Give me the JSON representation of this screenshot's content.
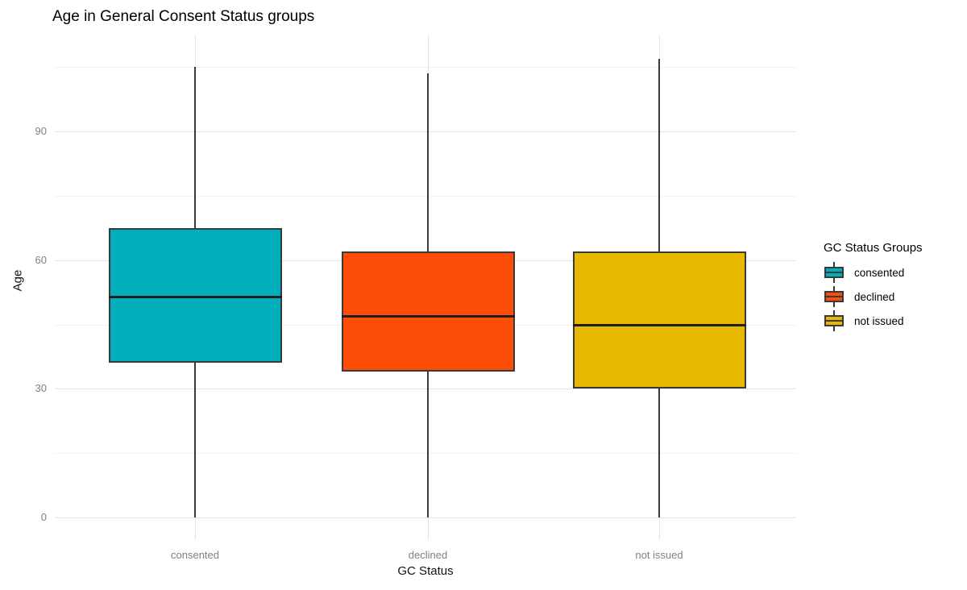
{
  "title": "Age in General Consent Status groups",
  "chart_data": {
    "type": "boxplot",
    "title": "Age in General Consent Status groups",
    "xlabel": "GC Status",
    "ylabel": "Age",
    "categories": [
      "consented",
      "declined",
      "not issued"
    ],
    "y_major_ticks": [
      0,
      30,
      60,
      90
    ],
    "y_tick_labels": [
      "0",
      "30",
      "60",
      "90"
    ],
    "y_minor_gridlines": [
      15,
      45,
      75,
      105
    ],
    "ylim": [
      -5,
      112
    ],
    "grid": true,
    "legend_title": "GC Status Groups",
    "legend_position": "right",
    "series": [
      {
        "name": "consented",
        "color": "#00AFBB",
        "min": 0,
        "q1": 36,
        "median": 51.5,
        "q3": 67.5,
        "max": 105
      },
      {
        "name": "declined",
        "color": "#FC4E07",
        "min": 0,
        "q1": 34,
        "median": 47,
        "q3": 62,
        "max": 103.5
      },
      {
        "name": "not issued",
        "color": "#E7B800",
        "min": 0,
        "q1": 30,
        "median": 45,
        "q3": 62,
        "max": 107
      }
    ]
  },
  "colors": {
    "background": "#ffffff",
    "grid_major": "#e3e3e3",
    "grid_minor": "#f2f2f2",
    "box_border": "#3a3a3a",
    "median_line": "#1f1f1f",
    "tick_text": "#808080",
    "axis_title_text": "#111111",
    "title_text": "#000000"
  },
  "legend": {
    "title": "GC Status Groups",
    "items": [
      {
        "label": "consented",
        "color": "#00AFBB"
      },
      {
        "label": "declined",
        "color": "#FC4E07"
      },
      {
        "label": "not issued",
        "color": "#E7B800"
      }
    ]
  }
}
